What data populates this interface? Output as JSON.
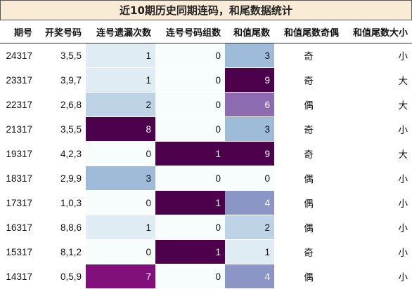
{
  "title": "近10期历史同期连码，和尾数据统计",
  "columns": [
    "期号",
    "开奖号码",
    "连号遗漏次数",
    "连号号码组数",
    "和值尾数",
    "和值尾数奇偶",
    "和值尾数大小"
  ],
  "colors": {
    "c0": "#f7fcfd",
    "c1": "#e0ecf4",
    "c2": "#bfd3e6",
    "c3": "#9ebcda",
    "c4": "#8c96c6",
    "c6": "#8c6bb1",
    "c7": "#810f7c",
    "c8": "#4d004b"
  },
  "rows": [
    {
      "period": "24317",
      "numbers": "3,5,5",
      "miss": "1",
      "groups": "0",
      "tail": "3",
      "parity": "奇",
      "size": "小"
    },
    {
      "period": "23317",
      "numbers": "3,9,7",
      "miss": "1",
      "groups": "0",
      "tail": "9",
      "parity": "奇",
      "size": "大"
    },
    {
      "period": "22317",
      "numbers": "2,6,8",
      "miss": "2",
      "groups": "0",
      "tail": "6",
      "parity": "偶",
      "size": "大"
    },
    {
      "period": "21317",
      "numbers": "3,5,5",
      "miss": "8",
      "groups": "0",
      "tail": "3",
      "parity": "奇",
      "size": "小"
    },
    {
      "period": "19317",
      "numbers": "4,2,3",
      "miss": "0",
      "groups": "1",
      "tail": "9",
      "parity": "奇",
      "size": "大"
    },
    {
      "period": "18317",
      "numbers": "2,9,9",
      "miss": "3",
      "groups": "0",
      "tail": "0",
      "parity": "偶",
      "size": "小"
    },
    {
      "period": "17317",
      "numbers": "1,0,3",
      "miss": "0",
      "groups": "1",
      "tail": "4",
      "parity": "偶",
      "size": "小"
    },
    {
      "period": "16317",
      "numbers": "8,8,6",
      "miss": "1",
      "groups": "0",
      "tail": "2",
      "parity": "偶",
      "size": "小"
    },
    {
      "period": "15317",
      "numbers": "8,1,2",
      "miss": "0",
      "groups": "1",
      "tail": "1",
      "parity": "奇",
      "size": "小"
    },
    {
      "period": "14317",
      "numbers": "0,5,9",
      "miss": "7",
      "groups": "0",
      "tail": "4",
      "parity": "偶",
      "size": "小"
    }
  ]
}
